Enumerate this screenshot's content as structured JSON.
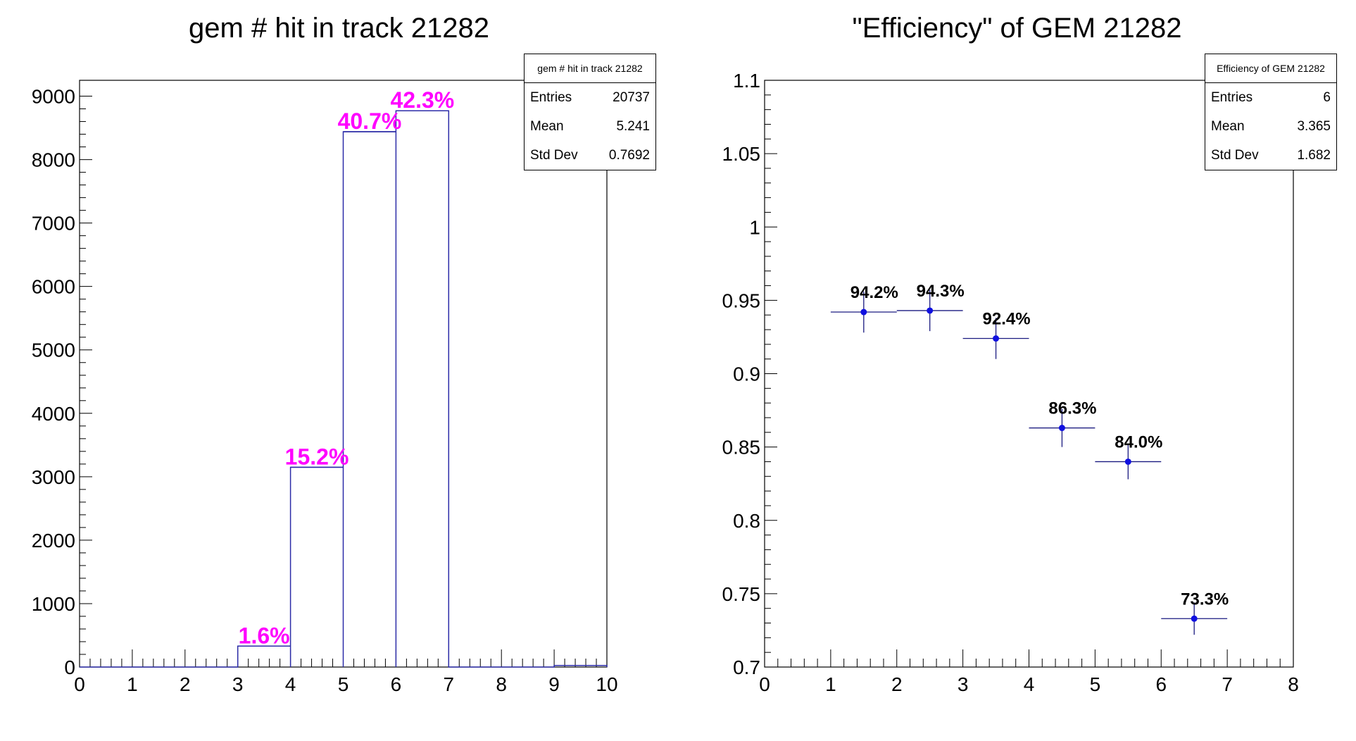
{
  "chart_data": [
    {
      "type": "histogram",
      "title": "gem # hit in track 21282",
      "xlim": [
        0,
        10
      ],
      "ylim": [
        0,
        9250
      ],
      "xticks": [
        0,
        1,
        2,
        3,
        4,
        5,
        6,
        7,
        8,
        9,
        10
      ],
      "yticks": [
        0,
        1000,
        2000,
        3000,
        4000,
        5000,
        6000,
        7000,
        8000,
        9000
      ],
      "bins": [
        {
          "x0": 3,
          "x1": 4,
          "value": 330
        },
        {
          "x0": 4,
          "x1": 5,
          "value": 3150
        },
        {
          "x0": 5,
          "x1": 6,
          "value": 8440
        },
        {
          "x0": 6,
          "x1": 7,
          "value": 8770
        },
        {
          "x0": 9,
          "x1": 10,
          "value": 25
        }
      ],
      "bin_labels": [
        {
          "x": 3.5,
          "y": 330,
          "text": "1.6%"
        },
        {
          "x": 4.5,
          "y": 3150,
          "text": "15.2%"
        },
        {
          "x": 5.5,
          "y": 8440,
          "text": "40.7%"
        },
        {
          "x": 6.5,
          "y": 8770,
          "text": "42.3%"
        }
      ],
      "line_color": "#2c2ca8",
      "label_color": "#ff00ff",
      "stats": {
        "title": "gem # hit in track 21282",
        "rows": [
          {
            "label": "Entries",
            "value": "20737"
          },
          {
            "label": "Mean",
            "value": "5.241"
          },
          {
            "label": "Std Dev",
            "value": "0.7692"
          }
        ]
      }
    },
    {
      "type": "scatter",
      "title": "\"Efficiency\" of GEM 21282",
      "xlim": [
        0,
        8
      ],
      "ylim": [
        0.7,
        1.1
      ],
      "xticks": [
        0,
        1,
        2,
        3,
        4,
        5,
        6,
        7,
        8
      ],
      "yticks": [
        0.7,
        0.75,
        0.8,
        0.85,
        0.9,
        0.95,
        1,
        1.05,
        1.1
      ],
      "points": [
        {
          "x": 1.5,
          "y": 0.942,
          "xerr": 0.5,
          "yerr": 0.014,
          "label": "94.2%"
        },
        {
          "x": 2.5,
          "y": 0.943,
          "xerr": 0.5,
          "yerr": 0.014,
          "label": "94.3%"
        },
        {
          "x": 3.5,
          "y": 0.924,
          "xerr": 0.5,
          "yerr": 0.014,
          "label": "92.4%"
        },
        {
          "x": 4.5,
          "y": 0.863,
          "xerr": 0.5,
          "yerr": 0.013,
          "label": "86.3%"
        },
        {
          "x": 5.5,
          "y": 0.84,
          "xerr": 0.5,
          "yerr": 0.012,
          "label": "84.0%"
        },
        {
          "x": 6.5,
          "y": 0.733,
          "xerr": 0.5,
          "yerr": 0.011,
          "label": "73.3%"
        }
      ],
      "marker_color": "#1010e0",
      "errbar_color": "#1a1a80",
      "stats": {
        "title": "Efficiency of GEM 21282",
        "rows": [
          {
            "label": "Entries",
            "value": "6"
          },
          {
            "label": "Mean",
            "value": "3.365"
          },
          {
            "label": "Std Dev",
            "value": "1.682"
          }
        ]
      }
    }
  ]
}
